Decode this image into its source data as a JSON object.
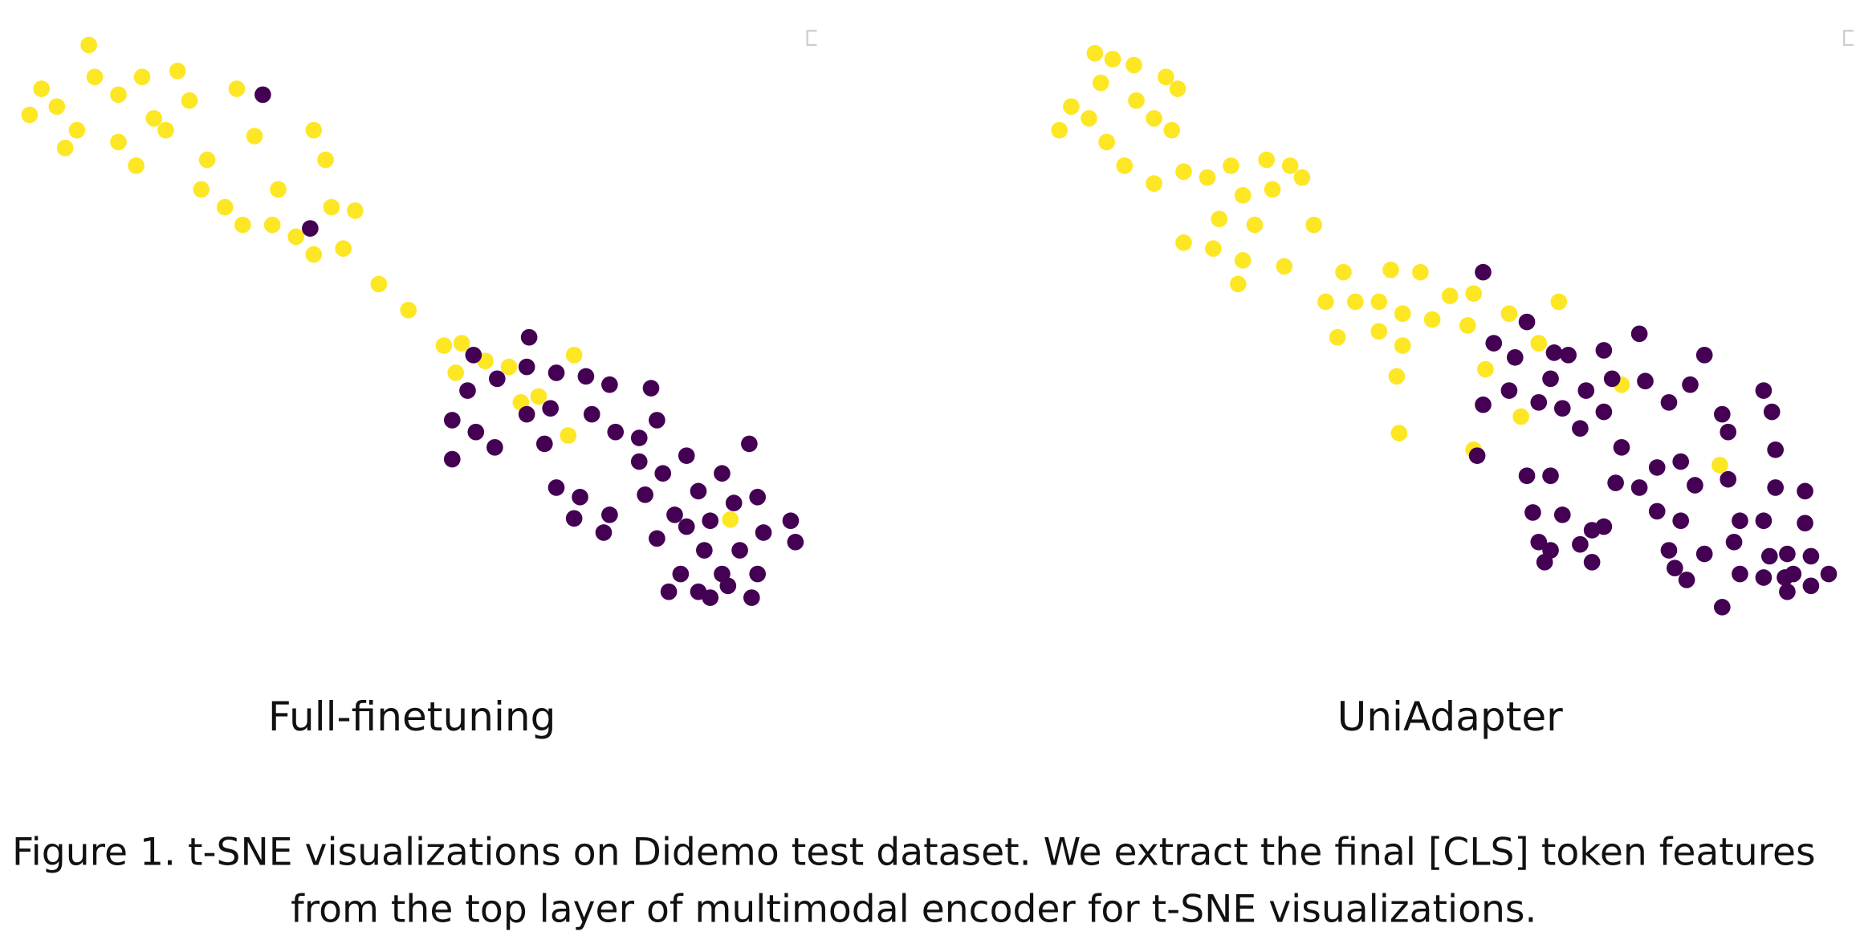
{
  "chart_data": [
    {
      "type": "scatter",
      "title": "Full-finetuning",
      "xlim": [
        0,
        700
      ],
      "ylim": [
        540,
        20
      ],
      "series": [
        {
          "color": "#fde725",
          "x": [
            75,
            35,
            25,
            48,
            65,
            80,
            100,
            120,
            150,
            100,
            115,
            130,
            160,
            175,
            200,
            215,
            235,
            265,
            275,
            170,
            190,
            205,
            230,
            250,
            265,
            290,
            280,
            300,
            320,
            345,
            375,
            390,
            385,
            410,
            430,
            440,
            485,
            480,
            617,
            455,
            55,
            140
          ],
          "y": [
            38,
            75,
            97,
            90,
            110,
            65,
            80,
            65,
            60,
            120,
            140,
            100,
            85,
            135,
            75,
            115,
            160,
            110,
            135,
            160,
            175,
            190,
            190,
            200,
            215,
            210,
            175,
            178,
            240,
            262,
            292,
            290,
            315,
            305,
            310,
            340,
            300,
            368,
            439,
            335,
            125,
            110
          ]
        },
        {
          "color": "#440154",
          "x": [
            222,
            262,
            400,
            447,
            445,
            420,
            395,
            382,
            382,
            402,
            418,
            445,
            465,
            470,
            495,
            515,
            550,
            500,
            520,
            540,
            555,
            460,
            470,
            490,
            485,
            510,
            515,
            540,
            545,
            560,
            580,
            590,
            610,
            633,
            620,
            640,
            570,
            580,
            555,
            600,
            625,
            645,
            668,
            672,
            595,
            610,
            575,
            565,
            590,
            615,
            635,
            640,
            600
          ],
          "y": [
            80,
            193,
            300,
            285,
            310,
            320,
            330,
            355,
            388,
            365,
            378,
            350,
            345,
            315,
            318,
            325,
            328,
            350,
            365,
            370,
            355,
            375,
            412,
            420,
            438,
            450,
            435,
            390,
            418,
            400,
            385,
            415,
            400,
            375,
            425,
            420,
            435,
            445,
            455,
            440,
            465,
            450,
            440,
            458,
            465,
            485,
            485,
            500,
            500,
            495,
            505,
            485,
            505
          ]
        }
      ]
    },
    {
      "type": "scatter",
      "title": "UniAdapter",
      "xlim": [
        870,
        1568
      ],
      "ylim": [
        540,
        20
      ],
      "series": [
        {
          "color": "#fde725",
          "x": [
            925,
            940,
            958,
            985,
            995,
            905,
            920,
            960,
            975,
            990,
            935,
            950,
            975,
            895,
            930,
            1000,
            1020,
            1040,
            1070,
            1090,
            1050,
            1075,
            1100,
            1030,
            1060,
            1110,
            1000,
            1025,
            1050,
            1085,
            1135,
            1175,
            1200,
            1225,
            1245,
            1120,
            1145,
            1165,
            1185,
            1210,
            1240,
            1275,
            1300,
            1130,
            1165,
            1185,
            1255,
            1285,
            1180,
            1182,
            1245,
            1317,
            1370,
            1453,
            1046
          ],
          "y": [
            45,
            50,
            55,
            65,
            75,
            90,
            100,
            85,
            100,
            110,
            120,
            140,
            155,
            110,
            70,
            145,
            150,
            140,
            135,
            140,
            165,
            160,
            150,
            185,
            190,
            190,
            205,
            210,
            220,
            225,
            230,
            228,
            230,
            250,
            248,
            255,
            255,
            255,
            265,
            270,
            275,
            265,
            290,
            285,
            280,
            292,
            312,
            352,
            318,
            366,
            380,
            255,
            325,
            393,
            240
          ]
        },
        {
          "color": "#440154",
          "x": [
            1253,
            1290,
            1262,
            1280,
            1313,
            1325,
            1355,
            1385,
            1440,
            1310,
            1340,
            1362,
            1390,
            1428,
            1253,
            1275,
            1300,
            1320,
            1355,
            1410,
            1455,
            1490,
            1497,
            1335,
            1370,
            1400,
            1420,
            1460,
            1500,
            1248,
            1290,
            1310,
            1365,
            1385,
            1432,
            1460,
            1500,
            1525,
            1295,
            1320,
            1345,
            1355,
            1400,
            1420,
            1470,
            1490,
            1525,
            1300,
            1310,
            1335,
            1345,
            1305,
            1410,
            1440,
            1465,
            1495,
            1510,
            1530,
            1545,
            1415,
            1425,
            1470,
            1490,
            1515,
            1530,
            1455,
            1510,
            1508
          ],
          "y": [
            230,
            272,
            290,
            302,
            298,
            300,
            296,
            282,
            300,
            320,
            330,
            320,
            322,
            325,
            342,
            330,
            340,
            345,
            348,
            340,
            350,
            330,
            348,
            362,
            378,
            395,
            390,
            365,
            380,
            385,
            402,
            402,
            408,
            412,
            410,
            405,
            412,
            415,
            433,
            435,
            448,
            445,
            432,
            440,
            440,
            440,
            442,
            458,
            465,
            460,
            475,
            475,
            465,
            468,
            458,
            470,
            468,
            470,
            485,
            480,
            490,
            485,
            488,
            485,
            495,
            513,
            500,
            488
          ]
        }
      ]
    }
  ],
  "caption": [
    "Figure 1. t-SNE visualizations on Didemo test dataset. We extract the final [CLS] token features",
    "from the top layer of multimodal encoder for t-SNE visualizations."
  ]
}
